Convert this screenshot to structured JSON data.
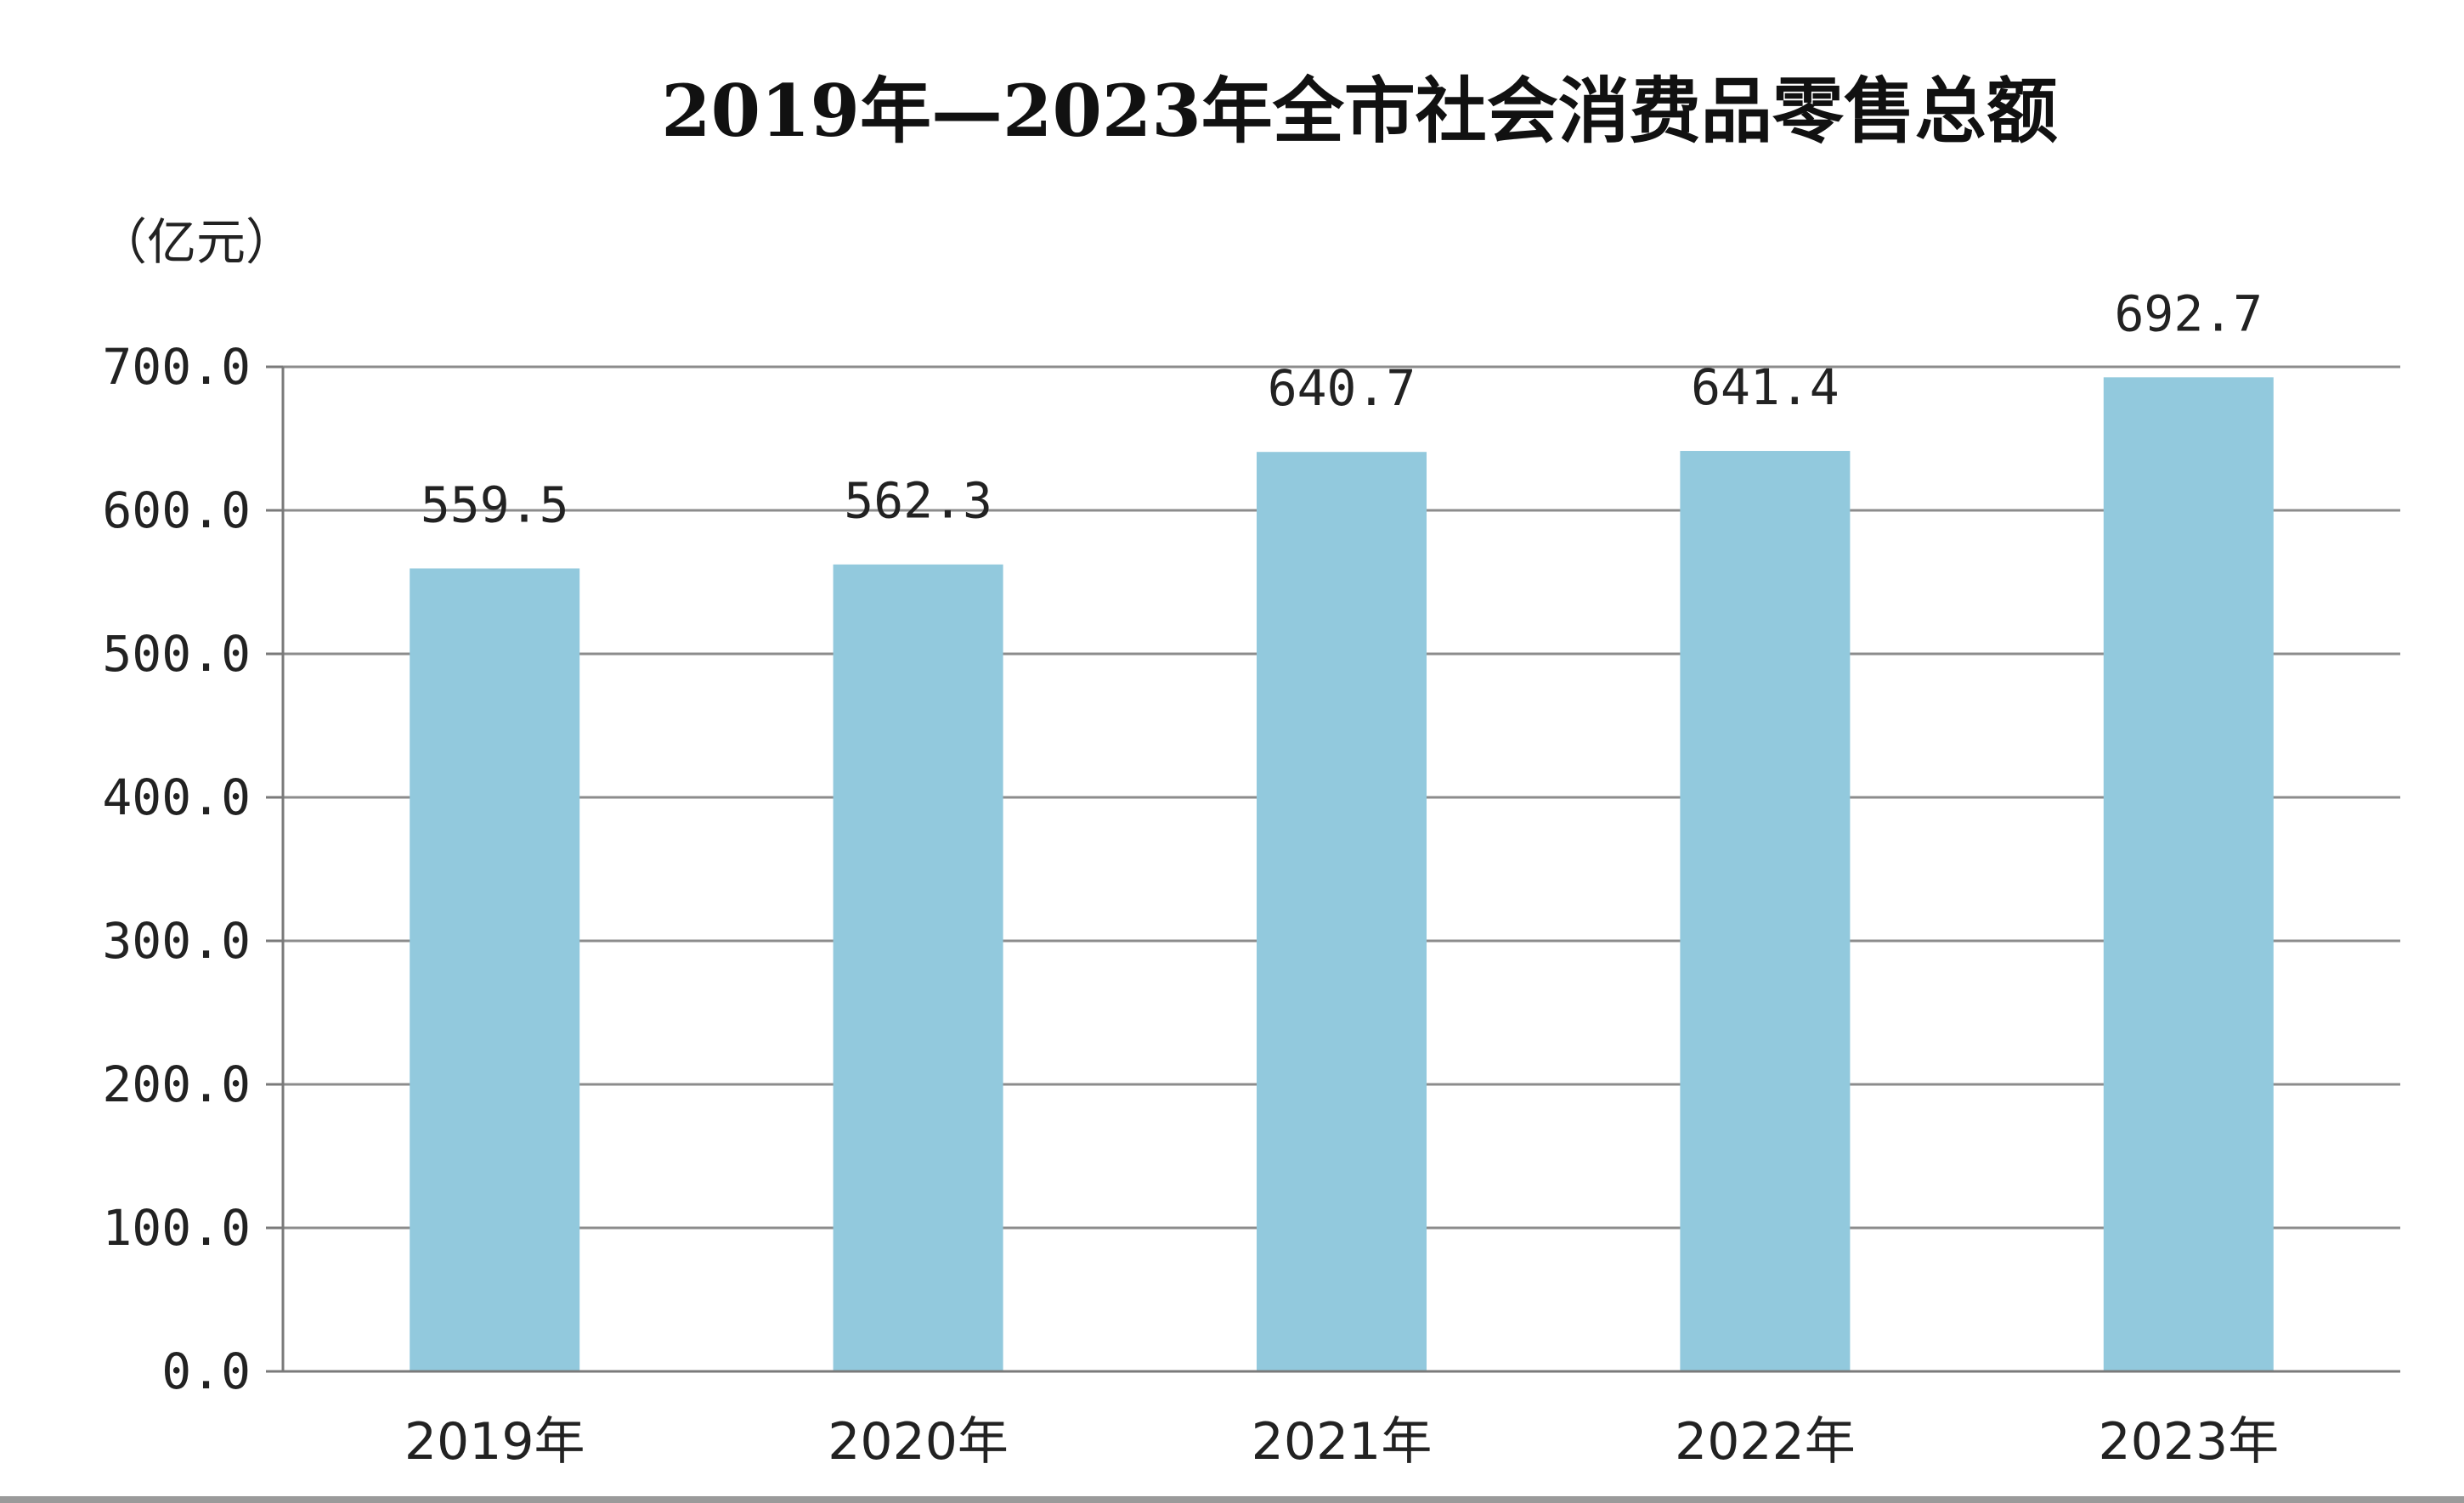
{
  "chart_data": {
    "type": "bar",
    "title": "2019年—2023年全市社会消费品零售总额",
    "unit_label": "（亿元）",
    "categories": [
      "2019年",
      "2020年",
      "2021年",
      "2022年",
      "2023年"
    ],
    "values": [
      559.5,
      562.3,
      640.7,
      641.4,
      692.7
    ],
    "value_labels": [
      "559.5",
      "562.3",
      "640.7",
      "641.4",
      "692.7"
    ],
    "yticks": [
      {
        "value": 0,
        "label": "0.0"
      },
      {
        "value": 100,
        "label": "100.0"
      },
      {
        "value": 200,
        "label": "200.0"
      },
      {
        "value": 300,
        "label": "300.0"
      },
      {
        "value": 400,
        "label": "400.0"
      },
      {
        "value": 500,
        "label": "500.0"
      },
      {
        "value": 600,
        "label": "600.0"
      },
      {
        "value": 700,
        "label": "700.0"
      }
    ],
    "ylim": [
      0,
      700
    ],
    "grid": true,
    "legend": "none",
    "bar_color": "#92c9dd"
  }
}
